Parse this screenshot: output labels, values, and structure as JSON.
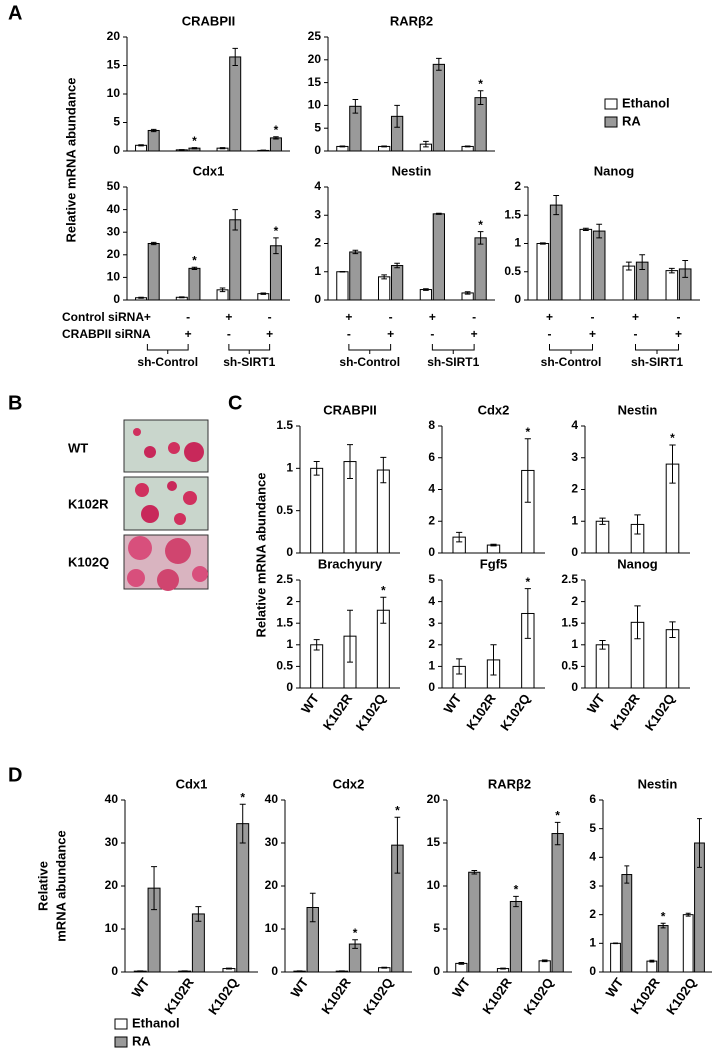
{
  "figure": {
    "panel_labels": [
      "A",
      "B",
      "C",
      "D"
    ],
    "legend": [
      {
        "name": "Ethanol",
        "color": "#ffffff"
      },
      {
        "name": "RA",
        "color": "#9a9a9a"
      }
    ],
    "ylabel_a": "Relative mRNA abundance",
    "ylabel_c": "Relative mRNA abundance",
    "ylabel_d": [
      "Relative",
      "mRNA abundance"
    ],
    "conditions": {
      "rows": [
        {
          "label": "Control siRNA",
          "signs": [
            "+",
            "-",
            "+",
            "-"
          ]
        },
        {
          "label": "CRABPII siRNA",
          "signs": [
            "-",
            "+",
            "-",
            "+"
          ]
        }
      ],
      "groups": [
        "sh-Control",
        "sh-SIRT1"
      ]
    },
    "panel_b": {
      "rows": [
        "WT",
        "K102R",
        "K102Q"
      ]
    }
  },
  "chart_data": [
    {
      "type": "bar",
      "title": "CRABPII",
      "categories": [
        null,
        null,
        null,
        null
      ],
      "ylim": [
        0,
        20
      ],
      "yticks": [
        0,
        5,
        10,
        15,
        20
      ],
      "series": [
        {
          "color": "#ffffff",
          "values": [
            1,
            0.2,
            0.5,
            0.1
          ],
          "errors": [
            0.1,
            0.05,
            0.1,
            0.05
          ]
        },
        {
          "color": "#9a9a9a",
          "values": [
            3.6,
            0.5,
            16.5,
            2.3
          ],
          "errors": [
            0.2,
            0.1,
            1.5,
            0.2
          ]
        }
      ],
      "annotations": [
        {
          "text": "*",
          "series": 1,
          "index": 1
        },
        {
          "text": "*",
          "series": 1,
          "index": 3
        }
      ]
    },
    {
      "type": "bar",
      "title": "RARβ2",
      "categories": [
        null,
        null,
        null,
        null
      ],
      "ylim": [
        0,
        25
      ],
      "yticks": [
        0,
        5,
        10,
        15,
        20,
        25
      ],
      "series": [
        {
          "color": "#ffffff",
          "values": [
            1,
            1,
            1.5,
            1
          ],
          "errors": [
            0.1,
            0.1,
            0.6,
            0.1
          ]
        },
        {
          "color": "#9a9a9a",
          "values": [
            9.8,
            7.6,
            19,
            11.7
          ],
          "errors": [
            1.5,
            2.4,
            1.3,
            1.5
          ]
        }
      ],
      "annotations": [
        {
          "text": "*",
          "series": 1,
          "index": 3
        }
      ]
    },
    {
      "type": "bar",
      "title": "Cdx1",
      "categories": [
        null,
        null,
        null,
        null
      ],
      "ylim": [
        0,
        50
      ],
      "yticks": [
        0,
        10,
        20,
        30,
        40,
        50
      ],
      "series": [
        {
          "color": "#ffffff",
          "values": [
            1,
            1.2,
            4.5,
            2.8
          ],
          "errors": [
            0.2,
            0.2,
            0.8,
            0.3
          ]
        },
        {
          "color": "#9a9a9a",
          "values": [
            25,
            14,
            35.5,
            24
          ],
          "errors": [
            0.5,
            0.5,
            4.5,
            3.5
          ]
        }
      ],
      "annotations": [
        {
          "text": "*",
          "series": 1,
          "index": 1
        },
        {
          "text": "*",
          "series": 1,
          "index": 3
        }
      ]
    },
    {
      "type": "bar",
      "title": "Nestin",
      "categories": [
        null,
        null,
        null,
        null
      ],
      "ylim": [
        0,
        4
      ],
      "yticks": [
        0,
        1,
        2,
        3,
        4
      ],
      "series": [
        {
          "color": "#ffffff",
          "values": [
            1,
            0.82,
            0.37,
            0.25
          ],
          "errors": [
            0.01,
            0.07,
            0.03,
            0.04
          ]
        },
        {
          "color": "#9a9a9a",
          "values": [
            1.7,
            1.22,
            3.05,
            2.2
          ],
          "errors": [
            0.06,
            0.08,
            0.02,
            0.22
          ]
        }
      ],
      "annotations": [
        {
          "text": "*",
          "series": 1,
          "index": 3
        }
      ]
    },
    {
      "type": "bar",
      "title": "Nanog",
      "categories": [
        null,
        null,
        null,
        null
      ],
      "ylim": [
        0,
        2
      ],
      "yticks": [
        0,
        0.5,
        1,
        1.5,
        2
      ],
      "series": [
        {
          "color": "#ffffff",
          "values": [
            1,
            1.25,
            0.6,
            0.52
          ],
          "errors": [
            0.01,
            0.02,
            0.07,
            0.04
          ]
        },
        {
          "color": "#9a9a9a",
          "values": [
            1.68,
            1.22,
            0.67,
            0.55
          ],
          "errors": [
            0.17,
            0.12,
            0.13,
            0.15
          ]
        }
      ],
      "annotations": []
    },
    {
      "type": "bar",
      "title": "CRABPII",
      "categories": [
        null,
        null,
        null
      ],
      "ylim": [
        0,
        1.5
      ],
      "yticks": [
        0,
        0.5,
        1,
        1.5
      ],
      "series": [
        {
          "color": "#ffffff",
          "values": [
            1,
            1.08,
            0.98
          ],
          "errors": [
            0.08,
            0.2,
            0.15
          ]
        }
      ],
      "annotations": []
    },
    {
      "type": "bar",
      "title": "Cdx2",
      "categories": [
        null,
        null,
        null
      ],
      "ylim": [
        0,
        8
      ],
      "yticks": [
        0,
        2,
        4,
        6,
        8
      ],
      "series": [
        {
          "color": "#ffffff",
          "values": [
            1,
            0.5,
            5.2
          ],
          "errors": [
            0.3,
            0.05,
            2
          ]
        }
      ],
      "annotations": [
        {
          "text": "*",
          "series": 0,
          "index": 2
        }
      ]
    },
    {
      "type": "bar",
      "title": "Nestin",
      "categories": [
        null,
        null,
        null
      ],
      "ylim": [
        0,
        4
      ],
      "yticks": [
        0,
        1,
        2,
        3,
        4
      ],
      "series": [
        {
          "color": "#ffffff",
          "values": [
            1,
            0.9,
            2.8
          ],
          "errors": [
            0.1,
            0.3,
            0.6
          ]
        }
      ],
      "annotations": [
        {
          "text": "*",
          "series": 0,
          "index": 2
        }
      ]
    },
    {
      "type": "bar",
      "title": "Brachyury",
      "categories": [
        "WT",
        "K102R",
        "K102Q"
      ],
      "ylim": [
        0,
        2.5
      ],
      "yticks": [
        0,
        0.5,
        1,
        1.5,
        2,
        2.5
      ],
      "series": [
        {
          "color": "#ffffff",
          "values": [
            1,
            1.2,
            1.8
          ],
          "errors": [
            0.12,
            0.6,
            0.3
          ]
        }
      ],
      "annotations": [
        {
          "text": "*",
          "series": 0,
          "index": 2
        }
      ]
    },
    {
      "type": "bar",
      "title": "Fgf5",
      "categories": [
        "WT",
        "K102R",
        "K102Q"
      ],
      "ylim": [
        0,
        5
      ],
      "yticks": [
        0,
        1,
        2,
        3,
        4,
        5
      ],
      "series": [
        {
          "color": "#ffffff",
          "values": [
            1,
            1.3,
            3.45
          ],
          "errors": [
            0.35,
            0.7,
            1.15
          ]
        }
      ],
      "annotations": [
        {
          "text": "*",
          "series": 0,
          "index": 2
        }
      ]
    },
    {
      "type": "bar",
      "title": "Nanog",
      "categories": [
        "WT",
        "K102R",
        "K102Q"
      ],
      "ylim": [
        0,
        2.5
      ],
      "yticks": [
        0,
        0.5,
        1,
        1.5,
        2,
        2.5
      ],
      "series": [
        {
          "color": "#ffffff",
          "values": [
            1,
            1.52,
            1.35
          ],
          "errors": [
            0.1,
            0.38,
            0.18
          ]
        }
      ],
      "annotations": []
    },
    {
      "type": "bar",
      "title": "Cdx1",
      "categories": [
        "WT",
        "K102R",
        "K102Q"
      ],
      "ylim": [
        0,
        40
      ],
      "yticks": [
        0,
        10,
        20,
        30,
        40
      ],
      "series": [
        {
          "color": "#ffffff",
          "values": [
            0.2,
            0.2,
            0.8
          ],
          "errors": [
            0.05,
            0.05,
            0.1
          ]
        },
        {
          "color": "#9a9a9a",
          "values": [
            19.5,
            13.5,
            34.5
          ],
          "errors": [
            5,
            1.7,
            4.5
          ]
        }
      ],
      "annotations": [
        {
          "text": "*",
          "series": 1,
          "index": 2
        }
      ]
    },
    {
      "type": "bar",
      "title": "Cdx2",
      "categories": [
        "WT",
        "K102R",
        "K102Q"
      ],
      "ylim": [
        0,
        40
      ],
      "yticks": [
        0,
        10,
        20,
        30,
        40
      ],
      "series": [
        {
          "color": "#ffffff",
          "values": [
            0.2,
            0.2,
            1
          ],
          "errors": [
            0.05,
            0.05,
            0.1
          ]
        },
        {
          "color": "#9a9a9a",
          "values": [
            15,
            6.5,
            29.5
          ],
          "errors": [
            3.3,
            1,
            6.5
          ]
        }
      ],
      "annotations": [
        {
          "text": "*",
          "series": 1,
          "index": 1
        },
        {
          "text": "*",
          "series": 1,
          "index": 2
        }
      ]
    },
    {
      "type": "bar",
      "title": "RARβ2",
      "categories": [
        "WT",
        "K102R",
        "K102Q"
      ],
      "ylim": [
        0,
        20
      ],
      "yticks": [
        0,
        5,
        10,
        15,
        20
      ],
      "series": [
        {
          "color": "#ffffff",
          "values": [
            1,
            0.4,
            1.3
          ],
          "errors": [
            0.1,
            0.05,
            0.1
          ]
        },
        {
          "color": "#9a9a9a",
          "values": [
            11.6,
            8.2,
            16.1
          ],
          "errors": [
            0.2,
            0.6,
            1.3
          ]
        }
      ],
      "annotations": [
        {
          "text": "*",
          "series": 1,
          "index": 1
        },
        {
          "text": "*",
          "series": 1,
          "index": 2
        }
      ]
    },
    {
      "type": "bar",
      "title": "Nestin",
      "categories": [
        "WT",
        "K102R",
        "K102Q"
      ],
      "ylim": [
        0,
        6
      ],
      "yticks": [
        0,
        1,
        2,
        3,
        4,
        5,
        6
      ],
      "series": [
        {
          "color": "#ffffff",
          "values": [
            1,
            0.38,
            2
          ],
          "errors": [
            0.01,
            0.03,
            0.05
          ]
        },
        {
          "color": "#9a9a9a",
          "values": [
            3.4,
            1.62,
            4.5
          ],
          "errors": [
            0.3,
            0.08,
            0.85
          ]
        }
      ],
      "annotations": [
        {
          "text": "*",
          "series": 1,
          "index": 1
        }
      ]
    }
  ]
}
